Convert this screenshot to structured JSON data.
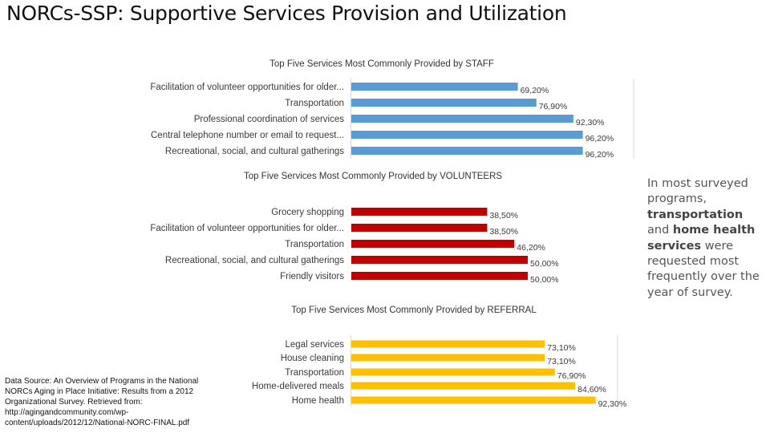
{
  "slide": {
    "title": "NORCs-SSP: Supportive Services Provision and Utilization",
    "note": {
      "part1": "In most surveyed programs, ",
      "bold1": "transportation",
      "part2": " and ",
      "bold2": "home health services",
      "part3": " were requested most frequently over the year of survey."
    },
    "source": "Data Source: An Overview of Programs in the National NORCs Aging in Place Initiative: Results from a 2012 Organizational Survey. Retrieved from: http://agingandcommunity.com/wp-content/uploads/2012/12/National-NORC-FINAL.pdf"
  },
  "colors": {
    "staff": "#5b9bd5",
    "volunteers": "#c00000",
    "referral": "#ffc000"
  },
  "chart_data": [
    {
      "type": "bar",
      "orientation": "horizontal",
      "title": "Top Five Services Most Commonly Provided by STAFF",
      "categories": [
        "Facilitation of volunteer opportunities for older...",
        "Transportation",
        "Professional coordination of services",
        "Central telephone number or email to request...",
        "Recreational, social, and cultural gatherings"
      ],
      "values": [
        69.2,
        76.9,
        92.3,
        96.2,
        96.2
      ],
      "labels": [
        "69,20%",
        "76,90%",
        "92,30%",
        "96,20%",
        "96,20%"
      ],
      "xlim": [
        0,
        100
      ],
      "grid": true,
      "color": "#5b9bd5"
    },
    {
      "type": "bar",
      "orientation": "horizontal",
      "title": "Top Five Services Most Commonly Provided by VOLUNTEERS",
      "categories": [
        "Grocery shopping",
        "Facilitation of volunteer opportunities for older...",
        "Transportation",
        "Recreational, social, and cultural gatherings",
        "Friendly visitors"
      ],
      "values": [
        38.5,
        38.5,
        46.2,
        50.0,
        50.0
      ],
      "labels": [
        "38,50%",
        "38,50%",
        "46,20%",
        "50,00%",
        "50,00%"
      ],
      "xlim": [
        0,
        100
      ],
      "grid": false,
      "color": "#c00000"
    },
    {
      "type": "bar",
      "orientation": "horizontal",
      "title": "Top Five Services Most Commonly Provided by REFERRAL",
      "categories": [
        "Legal services",
        "House cleaning",
        "Transportation",
        "Home-delivered meals",
        "Home health"
      ],
      "values": [
        73.1,
        73.1,
        76.9,
        84.6,
        92.3
      ],
      "labels": [
        "73,10%",
        "73,10%",
        "76,90%",
        "84,60%",
        "92,30%"
      ],
      "xlim": [
        0,
        100
      ],
      "grid": true,
      "color": "#ffc000"
    }
  ]
}
